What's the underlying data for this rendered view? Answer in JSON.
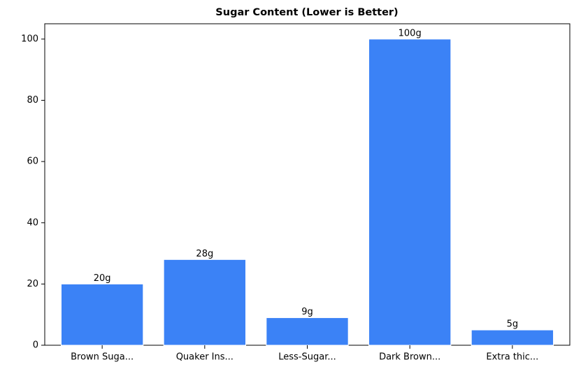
{
  "chart_data": {
    "type": "bar",
    "title": "Sugar Content (Lower is Better)",
    "categories": [
      "Brown Suga...",
      "Quaker Ins...",
      "Less-Sugar...",
      "Dark Brown...",
      "Extra thic..."
    ],
    "values": [
      20,
      28,
      9,
      100,
      5
    ],
    "value_labels": [
      "20g",
      "28g",
      "9g",
      "100g",
      "5g"
    ],
    "color": "#3b82f6",
    "ylim": [
      0,
      105
    ],
    "yticks": [
      0,
      20,
      40,
      60,
      80,
      100
    ],
    "grid": false
  }
}
